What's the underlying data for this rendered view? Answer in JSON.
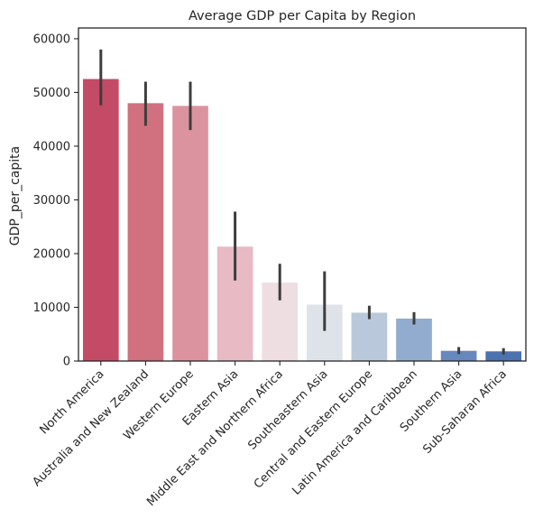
{
  "chart_data": {
    "type": "bar",
    "title": "Average GDP per Capita by Region",
    "xlabel": "",
    "ylabel": "GDP_per_capita",
    "ylim": [
      0,
      62000
    ],
    "yticks": [
      0,
      10000,
      20000,
      30000,
      40000,
      50000,
      60000
    ],
    "grid": false,
    "categories": [
      "North America",
      "Australia and New Zealand",
      "Western Europe",
      "Eastern Asia",
      "Middle East and Northern Africa",
      "Southeastern Asia",
      "Central and Eastern Europe",
      "Latin America and Caribbean",
      "Southern Asia",
      "Sub-Saharan Africa"
    ],
    "values": [
      52500,
      48000,
      47500,
      21300,
      14600,
      10500,
      9000,
      7900,
      1900,
      1800
    ],
    "error_low": [
      47600,
      43800,
      43000,
      15000,
      11300,
      5600,
      7800,
      6800,
      1300,
      1200
    ],
    "error_high": [
      58000,
      52000,
      52000,
      27800,
      18100,
      16700,
      10300,
      9100,
      2600,
      2400
    ],
    "colors": [
      "#c44b65",
      "#d1707f",
      "#db949f",
      "#e7bac4",
      "#eedde1",
      "#dee3ea",
      "#b9c8db",
      "#91acce",
      "#6688bd",
      "#4c72b0"
    ]
  }
}
